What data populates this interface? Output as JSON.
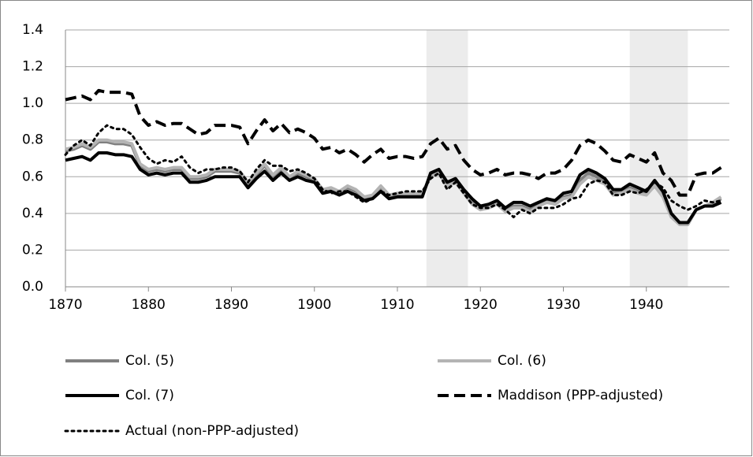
{
  "chart_data": {
    "type": "line",
    "x": [
      1870,
      1871,
      1872,
      1873,
      1874,
      1875,
      1876,
      1877,
      1878,
      1879,
      1880,
      1881,
      1882,
      1883,
      1884,
      1885,
      1886,
      1887,
      1888,
      1889,
      1890,
      1891,
      1892,
      1893,
      1894,
      1895,
      1896,
      1897,
      1898,
      1899,
      1900,
      1901,
      1902,
      1903,
      1904,
      1905,
      1906,
      1907,
      1908,
      1909,
      1910,
      1911,
      1912,
      1913,
      1914,
      1915,
      1916,
      1917,
      1918,
      1919,
      1920,
      1921,
      1922,
      1923,
      1924,
      1925,
      1926,
      1927,
      1928,
      1929,
      1930,
      1931,
      1932,
      1933,
      1934,
      1935,
      1936,
      1937,
      1938,
      1939,
      1940,
      1941,
      1942,
      1943,
      1944,
      1945,
      1946,
      1947,
      1948,
      1949
    ],
    "xlim": [
      1870,
      1950
    ],
    "xticks": [
      1870,
      1880,
      1890,
      1900,
      1910,
      1920,
      1930,
      1940
    ],
    "ylim": [
      0,
      1.4
    ],
    "yticks": [
      {
        "value": 0,
        "label": "0.0"
      },
      0.2,
      0.4,
      0.6,
      0.8,
      {
        "value": 1,
        "label": "1.0"
      },
      1.2,
      1.4
    ],
    "grid": true,
    "shaded_ranges": [
      [
        1913.5,
        1918.5
      ],
      [
        1938,
        1945
      ]
    ],
    "series": [
      {
        "name": "Col. (5)",
        "color": "#808080",
        "style": "solid",
        "values": [
          0.74,
          0.75,
          0.77,
          0.75,
          0.79,
          0.79,
          0.78,
          0.78,
          0.77,
          0.66,
          0.63,
          0.64,
          0.63,
          0.64,
          0.64,
          0.59,
          0.59,
          0.6,
          0.63,
          0.63,
          0.63,
          0.62,
          0.56,
          0.61,
          0.66,
          0.6,
          0.64,
          0.59,
          0.62,
          0.6,
          0.58,
          0.52,
          0.53,
          0.51,
          0.54,
          0.52,
          0.48,
          0.49,
          0.54,
          0.49,
          0.5,
          0.5,
          0.5,
          0.5,
          0.61,
          0.63,
          0.56,
          0.58,
          0.52,
          0.46,
          0.43,
          0.44,
          0.46,
          0.42,
          0.44,
          0.44,
          0.42,
          0.45,
          0.47,
          0.46,
          0.49,
          0.5,
          0.58,
          0.62,
          0.6,
          0.57,
          0.51,
          0.52,
          0.54,
          0.52,
          0.51,
          0.56,
          0.5,
          0.39,
          0.34,
          0.34,
          0.42,
          0.44,
          0.45,
          0.48
        ]
      },
      {
        "name": "Col. (6)",
        "color": "#b4b4b4",
        "style": "solid",
        "values": [
          0.75,
          0.76,
          0.78,
          0.76,
          0.8,
          0.8,
          0.79,
          0.79,
          0.78,
          0.67,
          0.64,
          0.65,
          0.64,
          0.65,
          0.65,
          0.6,
          0.6,
          0.61,
          0.64,
          0.64,
          0.64,
          0.63,
          0.57,
          0.62,
          0.67,
          0.61,
          0.65,
          0.6,
          0.63,
          0.61,
          0.59,
          0.53,
          0.54,
          0.52,
          0.55,
          0.53,
          0.49,
          0.5,
          0.55,
          0.5,
          0.51,
          0.51,
          0.51,
          0.51,
          0.6,
          0.62,
          0.55,
          0.57,
          0.51,
          0.45,
          0.42,
          0.43,
          0.45,
          0.41,
          0.43,
          0.43,
          0.41,
          0.44,
          0.46,
          0.45,
          0.48,
          0.49,
          0.56,
          0.6,
          0.58,
          0.56,
          0.5,
          0.51,
          0.53,
          0.51,
          0.5,
          0.55,
          0.49,
          0.38,
          0.34,
          0.34,
          0.42,
          0.44,
          0.46,
          0.49
        ]
      },
      {
        "name": "Col. (7)",
        "color": "#000000",
        "style": "solid",
        "values": [
          0.69,
          0.7,
          0.71,
          0.69,
          0.73,
          0.73,
          0.72,
          0.72,
          0.71,
          0.64,
          0.61,
          0.62,
          0.61,
          0.62,
          0.62,
          0.57,
          0.57,
          0.58,
          0.6,
          0.6,
          0.6,
          0.6,
          0.54,
          0.59,
          0.63,
          0.58,
          0.62,
          0.58,
          0.6,
          0.58,
          0.57,
          0.51,
          0.52,
          0.5,
          0.52,
          0.5,
          0.47,
          0.48,
          0.52,
          0.48,
          0.49,
          0.49,
          0.49,
          0.49,
          0.62,
          0.64,
          0.57,
          0.59,
          0.53,
          0.48,
          0.44,
          0.45,
          0.47,
          0.43,
          0.46,
          0.46,
          0.44,
          0.46,
          0.48,
          0.47,
          0.51,
          0.52,
          0.61,
          0.64,
          0.62,
          0.59,
          0.53,
          0.53,
          0.56,
          0.54,
          0.52,
          0.58,
          0.52,
          0.4,
          0.35,
          0.35,
          0.42,
          0.44,
          0.44,
          0.46
        ]
      },
      {
        "name": "Maddison (PPP-adjusted)",
        "color": "#000000",
        "style": "dashed",
        "values": [
          1.02,
          1.03,
          1.04,
          1.02,
          1.07,
          1.06,
          1.06,
          1.06,
          1.05,
          0.93,
          0.88,
          0.9,
          0.88,
          0.89,
          0.89,
          0.86,
          0.83,
          0.84,
          0.88,
          0.88,
          0.88,
          0.87,
          0.78,
          0.85,
          0.91,
          0.85,
          0.89,
          0.84,
          0.86,
          0.84,
          0.81,
          0.75,
          0.76,
          0.73,
          0.75,
          0.72,
          0.68,
          0.72,
          0.75,
          0.7,
          0.71,
          0.71,
          0.7,
          0.71,
          0.78,
          0.81,
          0.75,
          0.77,
          0.69,
          0.64,
          0.61,
          0.62,
          0.64,
          0.61,
          0.62,
          0.62,
          0.61,
          0.59,
          0.62,
          0.62,
          0.64,
          0.69,
          0.77,
          0.8,
          0.78,
          0.74,
          0.69,
          0.68,
          0.72,
          0.7,
          0.68,
          0.73,
          0.62,
          0.58,
          0.5,
          0.5,
          0.61,
          0.62,
          0.62,
          0.65
        ]
      },
      {
        "name": "Actual (non-PPP-adjusted)",
        "color": "#000000",
        "style": "dotted",
        "values": [
          0.72,
          0.77,
          0.8,
          0.77,
          0.84,
          0.88,
          0.86,
          0.86,
          0.83,
          0.76,
          0.7,
          0.67,
          0.69,
          0.68,
          0.71,
          0.65,
          0.62,
          0.64,
          0.64,
          0.65,
          0.65,
          0.63,
          0.57,
          0.64,
          0.69,
          0.66,
          0.66,
          0.63,
          0.64,
          0.62,
          0.59,
          0.53,
          0.51,
          0.52,
          0.52,
          0.49,
          0.46,
          0.48,
          0.52,
          0.5,
          0.51,
          0.52,
          0.52,
          0.52,
          0.59,
          0.62,
          0.53,
          0.57,
          0.51,
          0.45,
          0.43,
          0.43,
          0.45,
          0.42,
          0.38,
          0.42,
          0.4,
          0.43,
          0.43,
          0.43,
          0.45,
          0.48,
          0.49,
          0.56,
          0.58,
          0.57,
          0.5,
          0.5,
          0.52,
          0.51,
          0.53,
          0.57,
          0.54,
          0.47,
          0.44,
          0.42,
          0.44,
          0.47,
          0.46,
          0.47
        ]
      }
    ]
  }
}
